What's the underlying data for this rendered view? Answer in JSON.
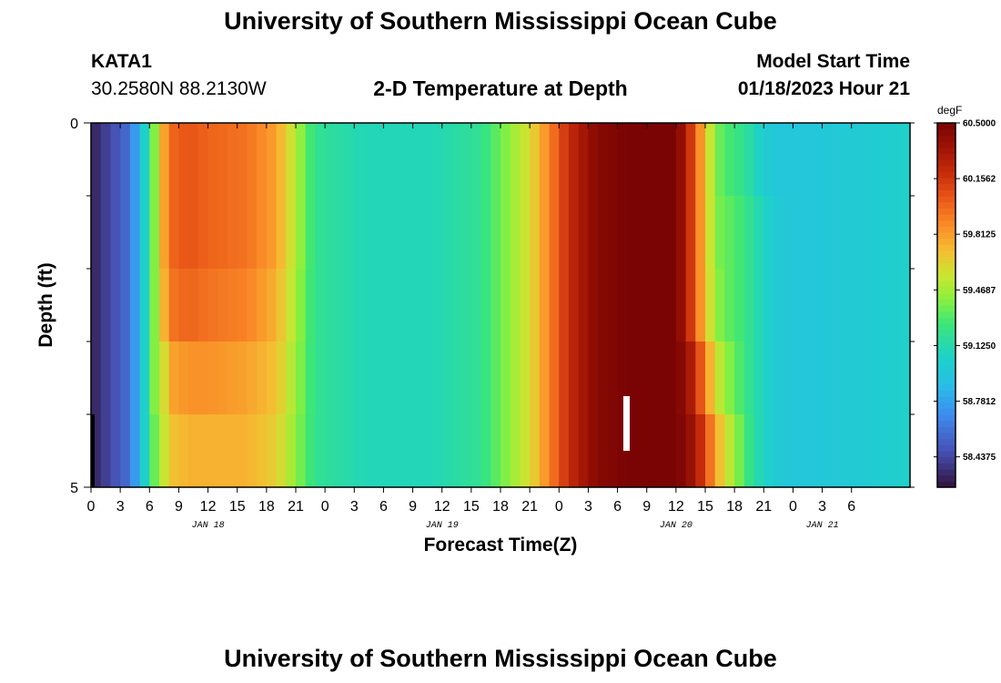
{
  "page": {
    "title": "University of Southern Mississippi Ocean Cube",
    "footer_title": "University of Southern Mississippi Ocean Cube",
    "station": "KATA1",
    "location": "30.2580N  88.2130W",
    "plot_title": "2-D Temperature at Depth",
    "model_start_label": "Model Start Time",
    "model_start_value": "01/18/2023 Hour 21"
  },
  "chart_data": {
    "type": "heatmap",
    "title": "2-D Temperature at Depth",
    "xlabel": "Forecast Time(Z)",
    "ylabel": "Depth (ft)",
    "x_hours": [
      0,
      84
    ],
    "y_range": [
      0,
      5
    ],
    "y_tick_labels": [
      "0",
      "5"
    ],
    "y_minor_ticks": 4,
    "x_tick_labels": [
      "0",
      "3",
      "6",
      "9",
      "12",
      "15",
      "18",
      "21",
      "0",
      "3",
      "6",
      "9",
      "12",
      "15",
      "18",
      "21",
      "0",
      "3",
      "6",
      "9",
      "12",
      "15",
      "18",
      "21",
      "0",
      "3",
      "6"
    ],
    "date_labels": [
      {
        "text": "JAN 18",
        "hour": 12
      },
      {
        "text": "JAN 19",
        "hour": 36
      },
      {
        "text": "JAN 20",
        "hour": 60
      },
      {
        "text": "JAN 21",
        "hour": 75
      }
    ],
    "colorbar": {
      "unit": "degF",
      "min": 58.25,
      "max": 60.5,
      "tick_values": [
        60.5,
        60.1562,
        59.8125,
        59.4687,
        59.125,
        58.7812,
        58.4375
      ],
      "tick_labels": [
        "60.5000",
        "60.1562",
        "59.8125",
        "59.4687",
        "59.1250",
        "58.7812",
        "58.4375"
      ]
    },
    "depth_layers": 5,
    "time_step_hours": 1,
    "profile_keypoints_hours": [
      0,
      4,
      5.5,
      6.5,
      7.5,
      8.5,
      10,
      12,
      16,
      19,
      23,
      28,
      35,
      40,
      45,
      49,
      52,
      55,
      60,
      61,
      62,
      63,
      64,
      65,
      66,
      67,
      68,
      70,
      72,
      80,
      84
    ],
    "layer_profiles_degF": [
      [
        58.3,
        58.6,
        59.05,
        59.4,
        59.8,
        60.0,
        60.05,
        60.0,
        59.95,
        59.8,
        59.2,
        59.1,
        59.1,
        59.2,
        59.6,
        60.2,
        60.45,
        60.5,
        60.5,
        60.3,
        60.0,
        59.7,
        59.4,
        59.3,
        59.25,
        59.2,
        59.1,
        58.95,
        58.95,
        59.0,
        59.05
      ],
      [
        58.3,
        58.6,
        59.05,
        59.4,
        59.8,
        60.0,
        60.05,
        60.0,
        59.95,
        59.8,
        59.2,
        59.1,
        59.1,
        59.2,
        59.6,
        60.2,
        60.45,
        60.5,
        60.5,
        60.3,
        60.0,
        59.7,
        59.4,
        59.35,
        59.3,
        59.25,
        59.15,
        59.0,
        58.95,
        59.0,
        59.05
      ],
      [
        58.3,
        58.6,
        59.05,
        59.4,
        59.75,
        59.95,
        60.0,
        59.95,
        59.9,
        59.75,
        59.2,
        59.1,
        59.1,
        59.2,
        59.6,
        60.2,
        60.45,
        60.5,
        60.5,
        60.3,
        60.0,
        59.7,
        59.45,
        59.35,
        59.3,
        59.25,
        59.15,
        59.0,
        58.95,
        59.0,
        59.05
      ],
      [
        58.3,
        58.6,
        59.05,
        59.4,
        59.6,
        59.8,
        59.85,
        59.85,
        59.8,
        59.7,
        59.2,
        59.1,
        59.1,
        59.2,
        59.6,
        60.2,
        60.45,
        60.5,
        60.5,
        60.4,
        60.2,
        59.9,
        59.6,
        59.45,
        59.35,
        59.25,
        59.15,
        59.0,
        58.95,
        59.0,
        59.05
      ],
      [
        58.3,
        58.6,
        59.05,
        59.35,
        59.55,
        59.7,
        59.75,
        59.75,
        59.75,
        59.65,
        59.2,
        59.1,
        59.1,
        59.2,
        59.6,
        60.2,
        60.45,
        60.5,
        60.5,
        60.45,
        60.3,
        60.1,
        59.8,
        59.6,
        59.45,
        59.3,
        59.15,
        59.0,
        58.95,
        59.0,
        59.05
      ]
    ]
  }
}
